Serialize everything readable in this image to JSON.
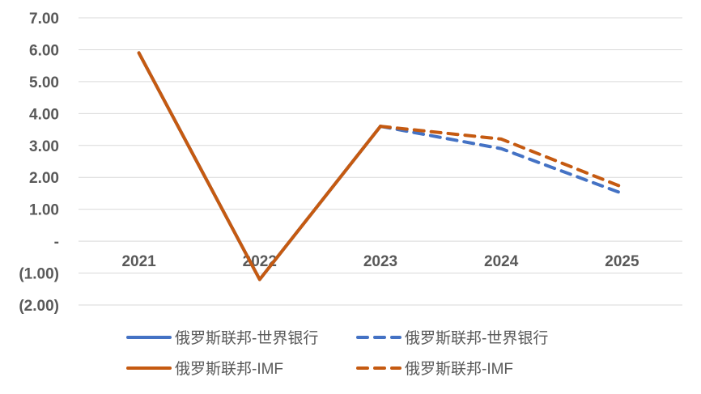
{
  "chart_data": {
    "type": "line",
    "title": "",
    "xlabel": "",
    "ylabel": "",
    "x": [
      "2021",
      "2022",
      "2023",
      "2024",
      "2025"
    ],
    "ylim": [
      -2,
      7
    ],
    "yticks": [
      7,
      6,
      5,
      4,
      3,
      2,
      1,
      0,
      -1,
      -2
    ],
    "ytick_labels": [
      "7.00",
      "6.00",
      "5.00",
      "4.00",
      "3.00",
      "2.00",
      "1.00",
      "-",
      "(1.00)",
      "(2.00)"
    ],
    "grid": true,
    "legend_position": "bottom",
    "series": [
      {
        "name": "俄罗斯联邦-世界银行",
        "style": "solid",
        "color": "#4472c4",
        "values": [
          5.9,
          -1.2,
          3.6,
          null,
          null
        ]
      },
      {
        "name": "俄罗斯联邦-世界银行",
        "style": "dashed",
        "color": "#4472c4",
        "values": [
          null,
          null,
          3.6,
          2.9,
          1.5
        ]
      },
      {
        "name": "俄罗斯联邦-IMF",
        "style": "solid",
        "color": "#c55a11",
        "values": [
          5.9,
          -1.2,
          3.6,
          null,
          null
        ]
      },
      {
        "name": "俄罗斯联邦-IMF",
        "style": "dashed",
        "color": "#c55a11",
        "values": [
          null,
          null,
          3.6,
          3.2,
          1.7
        ]
      }
    ]
  }
}
